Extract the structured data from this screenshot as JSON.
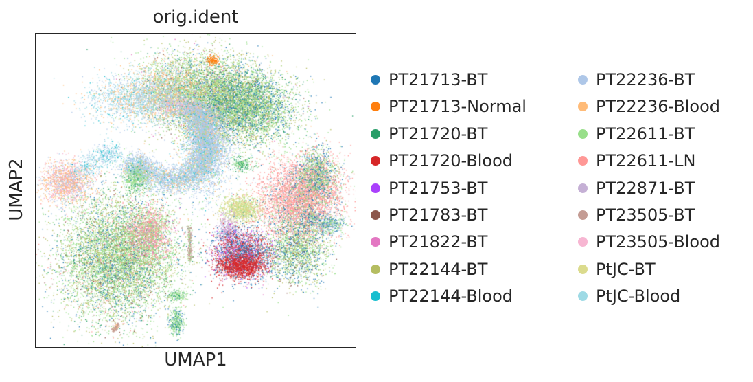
{
  "chart_data": {
    "type": "scatter",
    "title": "orig.ident",
    "xlabel": "UMAP1",
    "ylabel": "UMAP2",
    "xticks": "none",
    "yticks": "none",
    "grid": false,
    "legend_placement": "right",
    "legend_columns": 2,
    "series": [
      {
        "name": "PT21713-BT",
        "color": "#1f77b4"
      },
      {
        "name": "PT21713-Normal",
        "color": "#ff7f0e"
      },
      {
        "name": "PT21720-BT",
        "color": "#279e68"
      },
      {
        "name": "PT21720-Blood",
        "color": "#d62728"
      },
      {
        "name": "PT21753-BT",
        "color": "#aa40fc"
      },
      {
        "name": "PT21783-BT",
        "color": "#8c564b"
      },
      {
        "name": "PT21822-BT",
        "color": "#e377c2"
      },
      {
        "name": "PT22144-BT",
        "color": "#b5bd61"
      },
      {
        "name": "PT22144-Blood",
        "color": "#17becf"
      },
      {
        "name": "PT22236-BT",
        "color": "#aec7e8"
      },
      {
        "name": "PT22236-Blood",
        "color": "#ffbb78"
      },
      {
        "name": "PT22611-BT",
        "color": "#98df8a"
      },
      {
        "name": "PT22611-LN",
        "color": "#ff9896"
      },
      {
        "name": "PT22871-BT",
        "color": "#c5b0d5"
      },
      {
        "name": "PT23505-BT",
        "color": "#c49c94"
      },
      {
        "name": "PT23505-Blood",
        "color": "#f7b6d2"
      },
      {
        "name": "PtJC-BT",
        "color": "#dbdb8d"
      },
      {
        "name": "PtJC-Blood",
        "color": "#9edae5"
      }
    ]
  }
}
